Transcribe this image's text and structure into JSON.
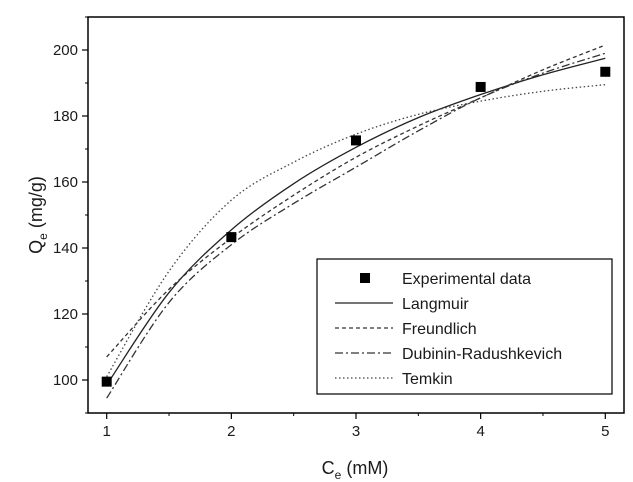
{
  "chart_data": {
    "type": "scatter",
    "xlim": [
      1,
      5
    ],
    "ylim": [
      90,
      210
    ],
    "x_ticks": [
      1,
      2,
      3,
      4,
      5
    ],
    "y_ticks": [
      100,
      120,
      140,
      160,
      180,
      200
    ],
    "xlabel": {
      "main": "C",
      "sub": "e",
      "rest": " (mM)"
    },
    "ylabel": {
      "main": "Q",
      "sub": "e",
      "rest": " (mg/g)"
    },
    "legend_position": "bottom-right",
    "series": [
      {
        "name": "Experimental data",
        "kind": "points",
        "marker": "square",
        "color": "#000000",
        "x": [
          1,
          2,
          3,
          4,
          5
        ],
        "y": [
          99.5,
          143.3,
          172.6,
          188.8,
          193.4
        ]
      },
      {
        "name": "Langmuir",
        "kind": "line",
        "dash": "solid",
        "color": "#222222",
        "x": [
          1,
          1.5,
          2,
          2.5,
          3,
          3.5,
          4,
          4.5,
          5
        ],
        "y": [
          98.5,
          126.5,
          145.5,
          159.5,
          170.5,
          179.5,
          186.5,
          192.5,
          197.5
        ]
      },
      {
        "name": "Freundlich",
        "kind": "line",
        "dash": "short-dash",
        "color": "#333333",
        "x": [
          1,
          1.5,
          2,
          2.5,
          3,
          3.5,
          4,
          4.5,
          5
        ],
        "y": [
          107.0,
          127.5,
          143.0,
          156.0,
          167.5,
          177.0,
          185.5,
          194.0,
          201.5
        ]
      },
      {
        "name": "Dubinin-Radushkevich",
        "kind": "line",
        "dash": "dash-dot",
        "color": "#333333",
        "x": [
          1,
          1.5,
          2,
          2.5,
          3,
          3.5,
          4,
          4.5,
          5
        ],
        "y": [
          94.5,
          123.5,
          141.0,
          153.5,
          164.5,
          175.5,
          185.5,
          193.0,
          199.0
        ]
      },
      {
        "name": "Temkin",
        "kind": "line",
        "dash": "dotted",
        "color": "#444444",
        "x": [
          1,
          1.5,
          2,
          2.5,
          3,
          3.5,
          4,
          4.5,
          5
        ],
        "y": [
          101.0,
          133.0,
          154.5,
          166.0,
          174.5,
          180.5,
          184.5,
          187.5,
          189.5
        ]
      }
    ]
  }
}
